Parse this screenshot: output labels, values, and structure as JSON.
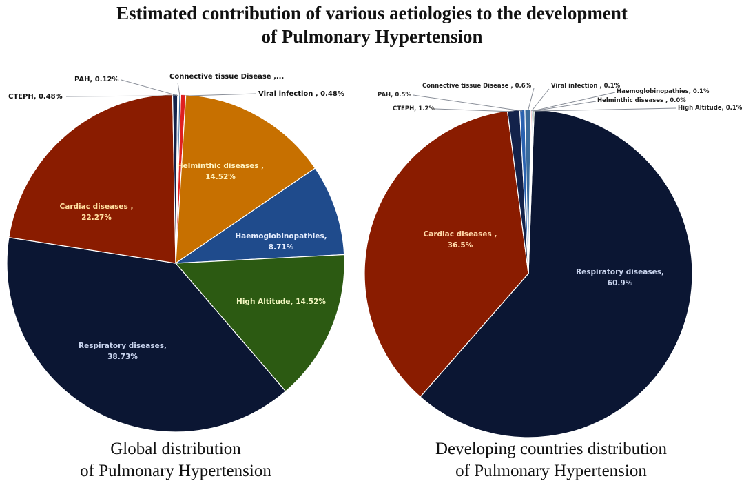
{
  "title_lines": [
    "Estimated contribution of various aetiologies to the development",
    "of Pulmonary Hypertension"
  ],
  "colors": {
    "respiratory": "#0b1633",
    "cardiac": "#8a1c00",
    "helminthic": "#c77000",
    "haemoglobinopathies": "#1f4b8c",
    "high_altitude": "#2c5a12",
    "viral": "#e02020",
    "cteph": "#13224a",
    "pah": "#2a62b0",
    "connective": "#3a6a9a"
  },
  "chart_data": [
    {
      "type": "pie",
      "caption_lines": [
        "Global distribution",
        "of Pulmonary Hypertension"
      ],
      "slices": [
        {
          "key": "viral",
          "label": "Viral infection , 0.48%",
          "value": 0.48,
          "color_key": "viral",
          "placement": "outside"
        },
        {
          "key": "helminthic",
          "label": "Helminthic diseases ,",
          "label2": "14.52%",
          "value": 14.52,
          "color_key": "helminthic",
          "placement": "inside"
        },
        {
          "key": "haemoglobinopathies",
          "label": "Haemoglobinopathies,",
          "label2": "8.71%",
          "value": 8.71,
          "color_key": "haemoglobinopathies",
          "placement": "inside"
        },
        {
          "key": "high_altitude",
          "label": "High Altitude, 14.52%",
          "value": 14.52,
          "color_key": "high_altitude",
          "placement": "inside"
        },
        {
          "key": "respiratory",
          "label": "Respiratory diseases,",
          "label2": "38.73%",
          "value": 38.73,
          "color_key": "respiratory",
          "placement": "inside"
        },
        {
          "key": "cardiac",
          "label": "Cardiac diseases ,",
          "label2": "22.27%",
          "value": 22.27,
          "color_key": "cardiac",
          "placement": "inside"
        },
        {
          "key": "cteph",
          "label": "CTEPH, 0.48%",
          "value": 0.48,
          "color_key": "cteph",
          "placement": "outside"
        },
        {
          "key": "pah",
          "label": "PAH, 0.12%",
          "value": 0.12,
          "color_key": "pah",
          "placement": "outside"
        },
        {
          "key": "connective",
          "label": "Connective tissue Disease ,...",
          "value": 0.17,
          "color_key": "connective",
          "placement": "outside"
        }
      ]
    },
    {
      "type": "pie",
      "caption_lines": [
        "Developing countries distribution",
        "of Pulmonary Hypertension"
      ],
      "slices": [
        {
          "key": "respiratory",
          "label": "Respiratory diseases,",
          "label2": "60.9%",
          "value": 60.9,
          "color_key": "respiratory",
          "placement": "inside"
        },
        {
          "key": "cardiac",
          "label": "Cardiac diseases ,",
          "label2": "36.5%",
          "value": 36.5,
          "color_key": "cardiac",
          "placement": "inside"
        },
        {
          "key": "cteph",
          "label": "CTEPH, 1.2%",
          "value": 1.2,
          "color_key": "cteph",
          "placement": "outside"
        },
        {
          "key": "pah",
          "label": "PAH, 0.5%",
          "value": 0.5,
          "color_key": "pah",
          "placement": "outside"
        },
        {
          "key": "connective",
          "label": "Connective tissue Disease , 0.6%",
          "value": 0.6,
          "color_key": "connective",
          "placement": "outside"
        },
        {
          "key": "viral",
          "label": "Viral infection , 0.1%",
          "value": 0.1,
          "color_key": "viral",
          "placement": "outside"
        },
        {
          "key": "haemoglobinopathies",
          "label": "Haemoglobinopathies, 0.1%",
          "value": 0.1,
          "color_key": "haemoglobinopathies",
          "placement": "outside"
        },
        {
          "key": "helminthic",
          "label": "Helminthic diseases , 0.0%",
          "value": 0.0,
          "color_key": "helminthic",
          "placement": "outside"
        },
        {
          "key": "high_altitude",
          "label": "High Altitude, 0.1%",
          "value": 0.1,
          "color_key": "high_altitude",
          "placement": "outside"
        }
      ]
    }
  ]
}
